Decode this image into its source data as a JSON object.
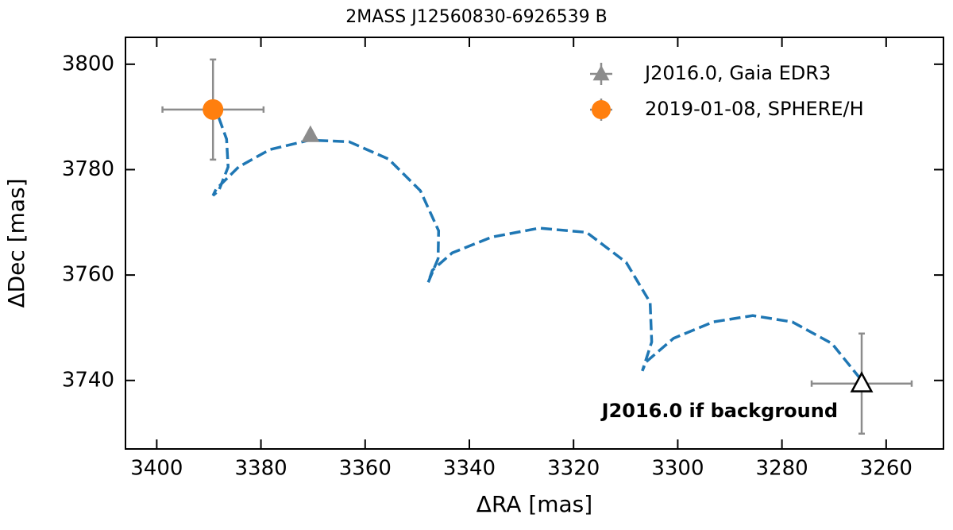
{
  "chart_data": {
    "type": "scatter",
    "title": "2MASS J12560830-6926539 B",
    "xlabel": "ΔRA [mas]",
    "ylabel": "ΔDec [mas]",
    "xlim": [
      3406,
      3249
    ],
    "ylim": [
      3727,
      3805.1
    ],
    "xticks": [
      3400,
      3380,
      3360,
      3340,
      3320,
      3300,
      3280,
      3260
    ],
    "yticks": [
      3740,
      3760,
      3780,
      3800
    ],
    "legend": "upper right",
    "series": [
      {
        "name": "J2016.0, Gaia EDR3",
        "color": "#8c8c8c",
        "marker": "triangle",
        "x": [
          3370.5
        ],
        "values": [
          3786.6
        ]
      },
      {
        "name": "2019-01-08, SPHERE/H",
        "color": "#ff7f0e",
        "marker": "circle",
        "x": [
          3389.2
        ],
        "values": [
          3791.4
        ],
        "xerr": [
          9.7
        ],
        "yerr": [
          9.5
        ]
      }
    ],
    "track": {
      "color": "#1f77b4",
      "style": "dashed",
      "x": [
        3388.1,
        3386.6,
        3386.3,
        3388.1,
        3389.2,
        3388.6,
        3384.3,
        3378.3,
        3370.7,
        3363.1,
        3355.5,
        3349.4,
        3345.9,
        3346.0,
        3347.9,
        3347.1,
        3343.3,
        3335.7,
        3326.6,
        3317.5,
        3309.9,
        3305.3,
        3305.0,
        3306.8,
        3306.1,
        3300.8,
        3293.2,
        3285.6,
        3278.0,
        3270.4,
        3264.7
      ],
      "values": [
        3789.9,
        3785.8,
        3780.5,
        3776.0,
        3775.1,
        3776.3,
        3780.5,
        3783.8,
        3785.6,
        3785.3,
        3782.0,
        3776.0,
        3768.4,
        3763.1,
        3758.6,
        3760.9,
        3764.2,
        3767.2,
        3768.9,
        3768.1,
        3762.4,
        3754.8,
        3747.3,
        3741.8,
        3743.5,
        3748.0,
        3751.1,
        3752.3,
        3751.1,
        3747.0,
        3740.0
      ]
    },
    "background": {
      "marker": "open-triangle",
      "color": "#000000",
      "errcolor": "#8c8c8c",
      "x": [
        3264.7
      ],
      "values": [
        3739.4
      ],
      "xerr": [
        9.6
      ],
      "yerr": [
        9.5
      ],
      "annotation": "J2016.0 if background"
    }
  }
}
